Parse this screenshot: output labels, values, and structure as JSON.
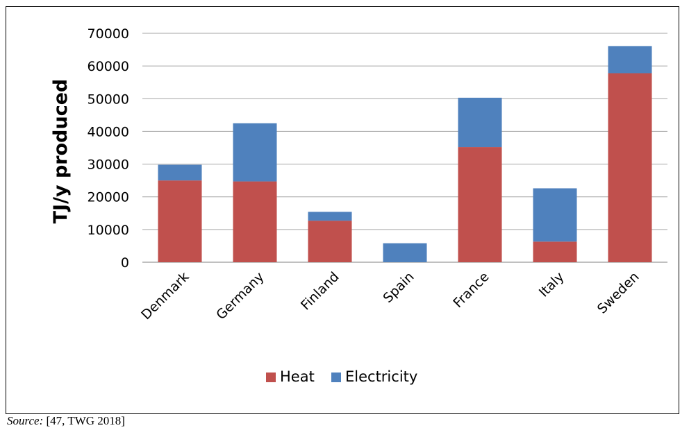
{
  "colors": {
    "heat": "#c0504d",
    "electricity": "#4f81bd",
    "grid": "#a6a6a6",
    "axis": "#808080",
    "text": "#000000"
  },
  "source": {
    "label": "Source:",
    "text": "[47, TWG 2018]"
  },
  "chart_data": {
    "type": "bar",
    "stacked": true,
    "title": "",
    "xlabel": "",
    "ylabel": "TJ/y produced",
    "ylim": [
      0,
      70000
    ],
    "yticks": [
      0,
      10000,
      20000,
      30000,
      40000,
      50000,
      60000,
      70000
    ],
    "grid": true,
    "legend_position": "bottom",
    "categories": [
      "Denmark",
      "Germany",
      "Finland",
      "Spain",
      "France",
      "Italy",
      "Sweden"
    ],
    "series": [
      {
        "name": "Heat",
        "color": "#c0504d",
        "values": [
          25000,
          24700,
          12700,
          0,
          35200,
          6300,
          57800
        ]
      },
      {
        "name": "Electricity",
        "color": "#4f81bd",
        "values": [
          4800,
          17800,
          2700,
          5800,
          15100,
          16300,
          8300
        ]
      }
    ]
  }
}
